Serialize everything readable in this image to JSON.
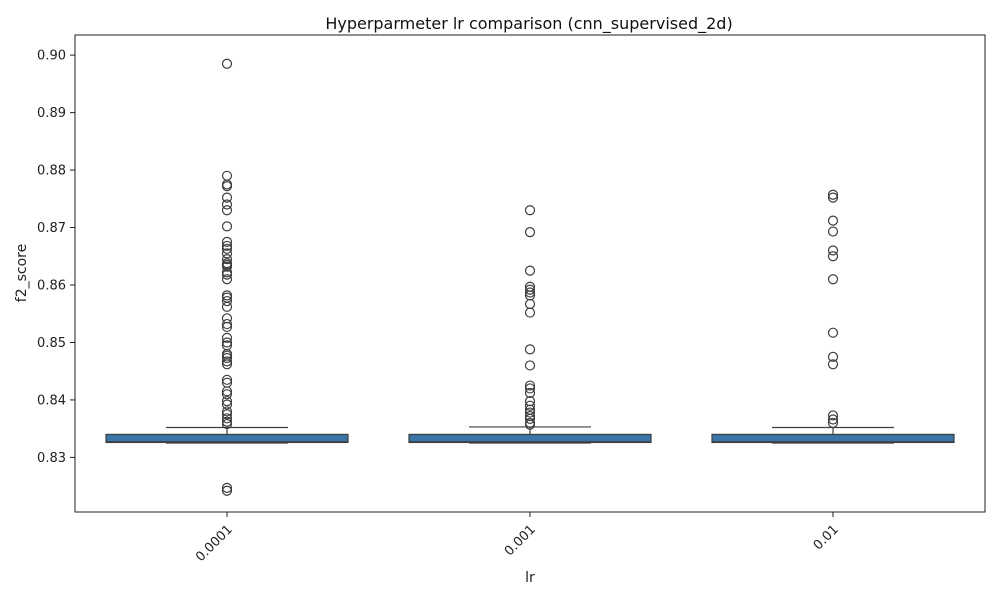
{
  "chart_data": {
    "type": "box",
    "title": "Hyperparmeter lr comparison (cnn_supervised_2d)",
    "xlabel": "lr",
    "ylabel": "f2_score",
    "ylim": [
      0.8205,
      0.9035
    ],
    "yticks": [
      0.83,
      0.84,
      0.85,
      0.86,
      0.87,
      0.88,
      0.89,
      0.9
    ],
    "ytick_labels": [
      "0.83",
      "0.84",
      "0.85",
      "0.86",
      "0.87",
      "0.88",
      "0.89",
      "0.90"
    ],
    "categories": [
      "0.0001",
      "0.001",
      "0.01"
    ],
    "box_color": "#3a75a8",
    "boxes": [
      {
        "category": "0.0001",
        "whislo": 0.8325,
        "q1": 0.8326,
        "median": 0.8327,
        "q3": 0.834,
        "whishi": 0.8352,
        "fliers": [
          0.8985,
          0.879,
          0.8775,
          0.8772,
          0.8752,
          0.874,
          0.873,
          0.8702,
          0.8675,
          0.8668,
          0.8663,
          0.8655,
          0.8645,
          0.8638,
          0.8635,
          0.8632,
          0.8622,
          0.8618,
          0.861,
          0.8582,
          0.8578,
          0.8572,
          0.8562,
          0.8542,
          0.8532,
          0.8527,
          0.8508,
          0.85,
          0.8495,
          0.848,
          0.8477,
          0.8473,
          0.8467,
          0.8462,
          0.8435,
          0.843,
          0.8415,
          0.841,
          0.8398,
          0.8392,
          0.838,
          0.8375,
          0.8368,
          0.8362,
          0.8358,
          0.8247,
          0.8242
        ]
      },
      {
        "category": "0.001",
        "whislo": 0.8325,
        "q1": 0.8326,
        "median": 0.8327,
        "q3": 0.834,
        "whishi": 0.8353,
        "fliers": [
          0.873,
          0.8692,
          0.8625,
          0.8597,
          0.8592,
          0.8587,
          0.8582,
          0.8567,
          0.8552,
          0.8488,
          0.846,
          0.8425,
          0.842,
          0.8412,
          0.8398,
          0.839,
          0.8383,
          0.8378,
          0.8372,
          0.8367,
          0.836,
          0.8357
        ]
      },
      {
        "category": "0.01",
        "whislo": 0.8325,
        "q1": 0.8326,
        "median": 0.8327,
        "q3": 0.834,
        "whishi": 0.8352,
        "fliers": [
          0.8757,
          0.8752,
          0.8712,
          0.8693,
          0.866,
          0.865,
          0.861,
          0.8517,
          0.8475,
          0.8462,
          0.8373,
          0.8366,
          0.836
        ]
      }
    ],
    "grid": false,
    "legend": "none"
  }
}
